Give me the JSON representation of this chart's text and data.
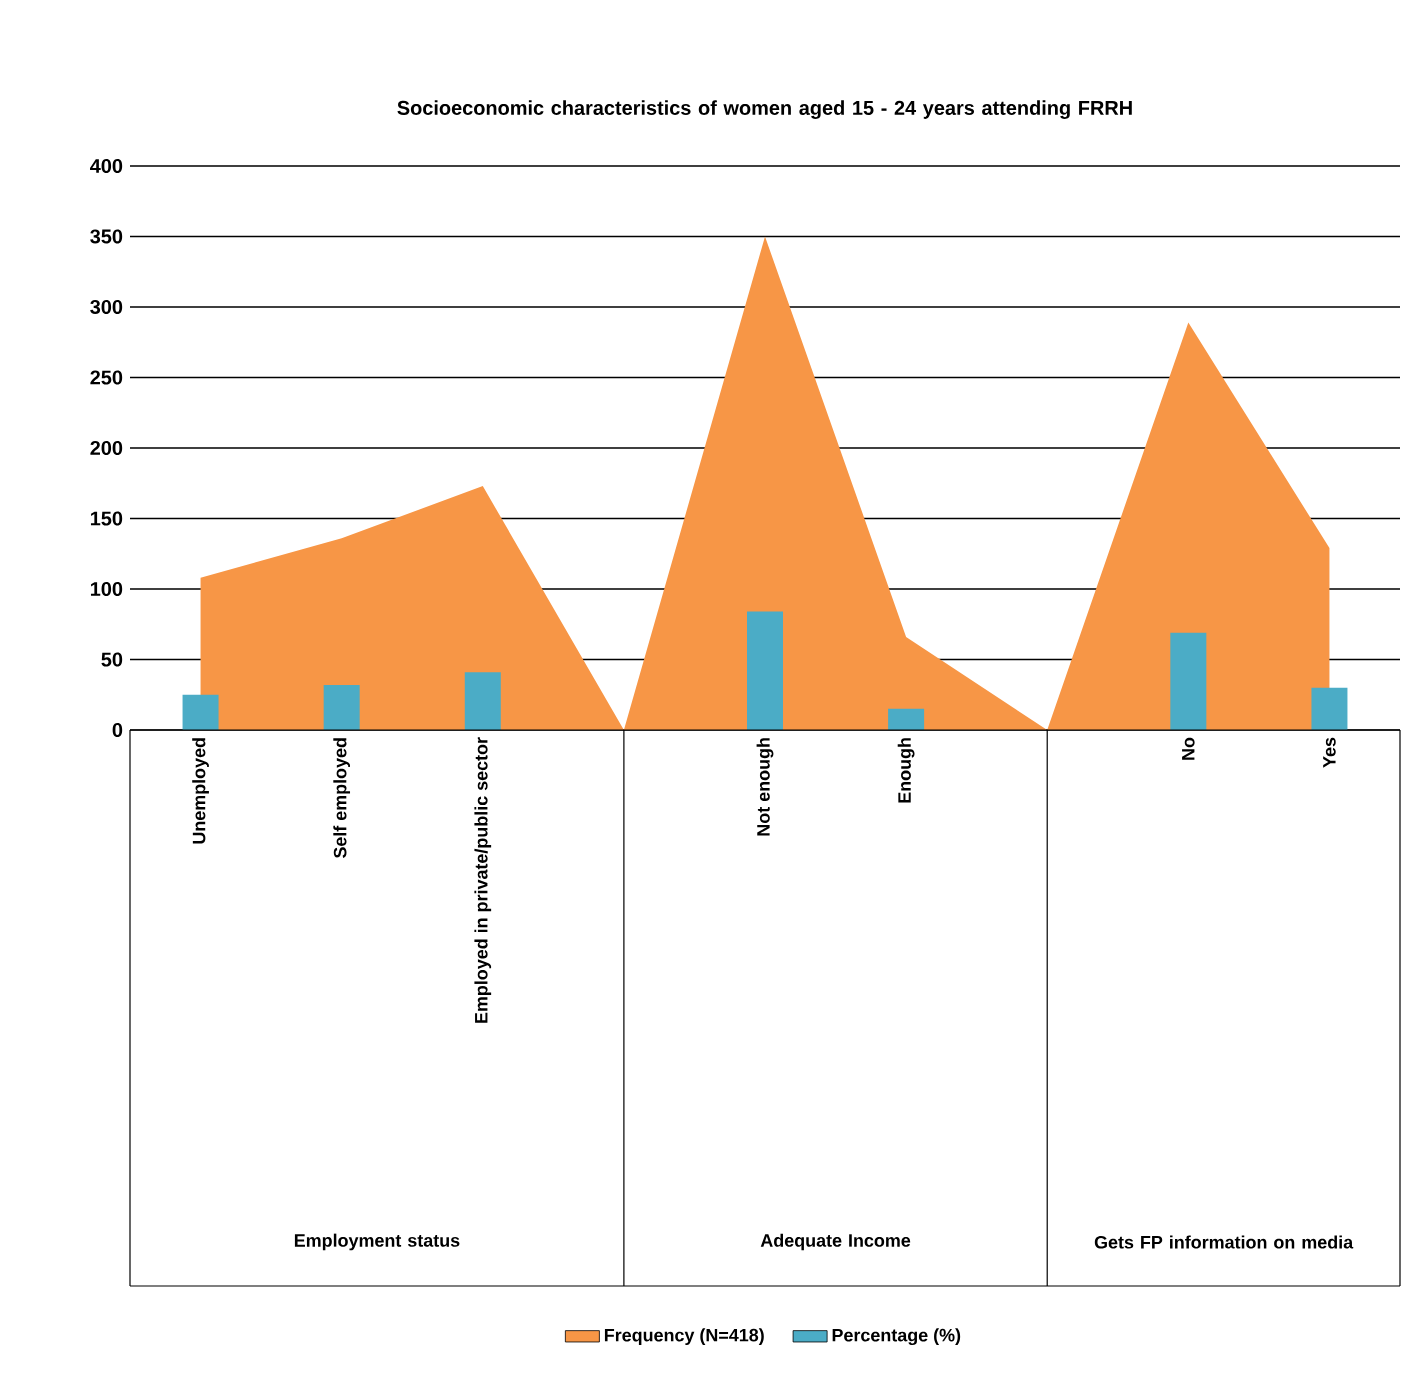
{
  "chart_data": {
    "type": "area",
    "title": "Socioeconomic  characteristics of women aged 15 - 24 years attending FRRH",
    "categories": [
      "Unemployed",
      "Self employed",
      "Employed in private/public sector",
      null,
      "Not enough",
      "Enough",
      null,
      "No",
      "Yes"
    ],
    "series": [
      {
        "name": "Frequency (N=418)",
        "color": "#f79646",
        "values": [
          108,
          136,
          173,
          0,
          350,
          66,
          0,
          289,
          129
        ]
      },
      {
        "name": "Percentage (%)",
        "type": "bar",
        "color": "#4bacc6",
        "values": [
          25,
          32,
          41,
          null,
          84,
          15,
          null,
          69,
          30
        ]
      }
    ],
    "ylim": [
      0,
      400
    ],
    "yticks": [
      0,
      50,
      100,
      150,
      200,
      250,
      300,
      350,
      400
    ],
    "grid": "y",
    "legend": "bottom",
    "annotations": [
      "Employment status",
      "Adequate Income",
      "Gets FP information on media"
    ]
  }
}
